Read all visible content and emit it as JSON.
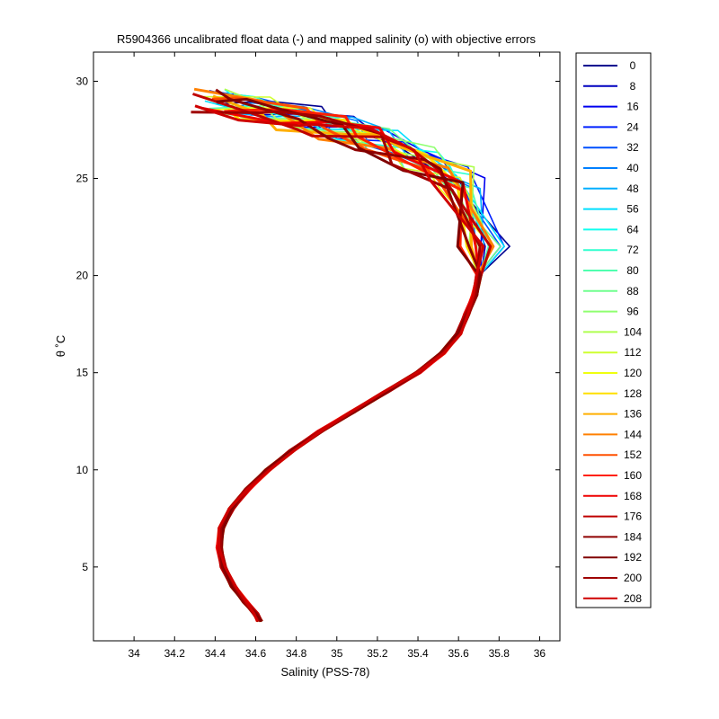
{
  "chart_data": {
    "type": "line",
    "title": "R5904366 uncalibrated float data (-) and mapped salinity (o) with objective errors",
    "xlabel": "Salinity (PSS-78)",
    "ylabel": "θ ˚C",
    "xlim": [
      33.8,
      36.1
    ],
    "ylim": [
      1.2,
      31.5
    ],
    "x_ticks": [
      "34",
      "34.2",
      "34.4",
      "34.6",
      "34.8",
      "35",
      "35.2",
      "35.4",
      "35.6",
      "35.8",
      "36"
    ],
    "x_tick_values": [
      34,
      34.2,
      34.4,
      34.6,
      34.8,
      35,
      35.2,
      35.4,
      35.6,
      35.8,
      36
    ],
    "y_ticks": [
      "5",
      "10",
      "15",
      "20",
      "25",
      "30"
    ],
    "y_tick_values": [
      5,
      10,
      15,
      20,
      25,
      30
    ],
    "grid": false,
    "legend_position": "outside-right",
    "legend": [
      "0",
      "8",
      "16",
      "24",
      "32",
      "40",
      "48",
      "56",
      "64",
      "72",
      "80",
      "88",
      "96",
      "104",
      "112",
      "120",
      "128",
      "136",
      "144",
      "152",
      "160",
      "168",
      "176",
      "184",
      "192",
      "200",
      "208"
    ],
    "legend_colors": [
      "#00008f",
      "#0000bf",
      "#0000ef",
      "#0020ff",
      "#0050ff",
      "#0080ff",
      "#00afff",
      "#00dfff",
      "#10ffef",
      "#30ffcf",
      "#50ffaf",
      "#70ff8f",
      "#8fff70",
      "#afff50",
      "#cfff30",
      "#efff10",
      "#ffdf00",
      "#ffaf00",
      "#ff8000",
      "#ff5000",
      "#ff2000",
      "#ef0000",
      "#bf0000",
      "#8f0000",
      "#800000",
      "#9f0000",
      "#cf0000"
    ],
    "series_profile": {
      "salinity": [
        34.62,
        34.6,
        34.55,
        34.49,
        34.44,
        34.42,
        34.43,
        34.48,
        34.56,
        34.66,
        34.78,
        34.92,
        35.08,
        35.24,
        35.4,
        35.52,
        35.6,
        35.64,
        35.68,
        35.7,
        35.72,
        35.6,
        35.4,
        35.2,
        35.0,
        34.8,
        34.6,
        34.4
      ],
      "theta": [
        2.2,
        2.6,
        3.2,
        4.0,
        5.0,
        6.0,
        7.0,
        8.0,
        9.0,
        10.0,
        11.0,
        12.0,
        13.0,
        14.0,
        15.0,
        16.0,
        17.0,
        18.0,
        19.0,
        20.0,
        21.5,
        25.0,
        26.0,
        27.0,
        27.6,
        28.1,
        28.6,
        29.0
      ]
    }
  }
}
